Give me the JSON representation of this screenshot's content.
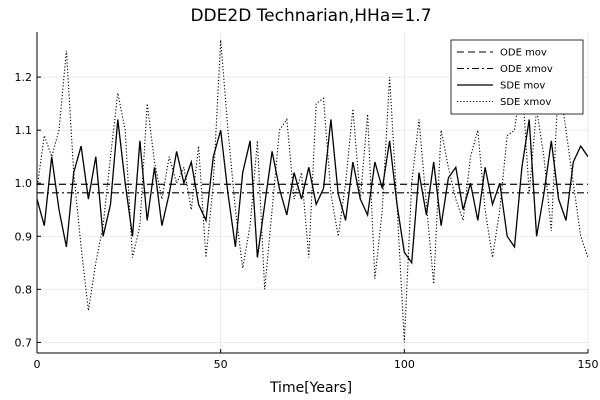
{
  "chart_data": {
    "type": "line",
    "title": "DDE2D Technarian,HHa=1.7",
    "xlabel": "Time[Years]",
    "ylabel": "",
    "xlim": [
      0,
      150
    ],
    "ylim": [
      0.68,
      1.285
    ],
    "xticks": [
      0,
      50,
      100,
      150
    ],
    "yticks": [
      0.7,
      0.8,
      0.9,
      1.0,
      1.1,
      1.2
    ],
    "xtick_labels": [
      "0",
      "50",
      "100",
      "150"
    ],
    "ytick_labels": [
      "0.7",
      "0.8",
      "0.9",
      "1.0",
      "1.1",
      "1.2"
    ],
    "grid": true,
    "legend_position": "top-right",
    "series": [
      {
        "name": "ODE mov",
        "style": "dashed",
        "x": [
          0,
          150
        ],
        "y": [
          0.998,
          0.998
        ]
      },
      {
        "name": "ODE xmov",
        "style": "dashdot",
        "x": [
          0,
          150
        ],
        "y": [
          0.982,
          0.982
        ]
      },
      {
        "name": "SDE mov",
        "style": "solid",
        "x": [
          0,
          2,
          4,
          6,
          8,
          10,
          12,
          14,
          16,
          18,
          20,
          22,
          24,
          26,
          28,
          30,
          32,
          34,
          36,
          38,
          40,
          42,
          44,
          46,
          48,
          50,
          52,
          54,
          56,
          58,
          60,
          62,
          64,
          66,
          68,
          70,
          72,
          74,
          76,
          78,
          80,
          82,
          84,
          86,
          88,
          90,
          92,
          94,
          96,
          98,
          100,
          102,
          104,
          106,
          108,
          110,
          112,
          114,
          116,
          118,
          120,
          122,
          124,
          126,
          128,
          130,
          132,
          134,
          136,
          138,
          140,
          142,
          144,
          146,
          148,
          150
        ],
        "y": [
          0.97,
          0.92,
          1.05,
          0.95,
          0.88,
          1.02,
          1.07,
          0.97,
          1.05,
          0.9,
          0.96,
          1.12,
          1.0,
          0.9,
          1.08,
          0.93,
          1.03,
          0.92,
          0.98,
          1.06,
          1.0,
          1.04,
          0.96,
          0.93,
          1.05,
          1.1,
          0.98,
          0.88,
          1.02,
          1.08,
          0.86,
          0.96,
          1.06,
          0.99,
          0.94,
          1.02,
          0.97,
          1.03,
          0.96,
          0.99,
          1.12,
          0.98,
          0.93,
          1.04,
          0.97,
          0.94,
          1.04,
          0.99,
          1.08,
          0.96,
          0.87,
          0.85,
          1.02,
          0.94,
          1.04,
          0.92,
          1.01,
          1.03,
          0.95,
          1.0,
          0.93,
          1.03,
          0.96,
          1.0,
          0.9,
          0.88,
          1.03,
          1.12,
          0.9,
          0.98,
          1.08,
          0.97,
          0.93,
          1.04,
          1.07,
          1.05
        ]
      },
      {
        "name": "SDE xmov",
        "style": "dotted",
        "x": [
          0,
          2,
          4,
          6,
          8,
          10,
          12,
          14,
          16,
          18,
          20,
          22,
          24,
          26,
          28,
          30,
          32,
          34,
          36,
          38,
          40,
          42,
          44,
          46,
          48,
          50,
          52,
          54,
          56,
          58,
          60,
          62,
          64,
          66,
          68,
          70,
          72,
          74,
          76,
          78,
          80,
          82,
          84,
          86,
          88,
          90,
          92,
          94,
          96,
          98,
          100,
          102,
          104,
          106,
          108,
          110,
          112,
          114,
          116,
          118,
          120,
          122,
          124,
          126,
          128,
          130,
          132,
          134,
          136,
          138,
          140,
          142,
          144,
          146,
          148,
          150
        ],
        "y": [
          0.99,
          1.09,
          1.05,
          1.1,
          1.25,
          1.02,
          0.88,
          0.76,
          0.85,
          0.92,
          1.05,
          1.17,
          1.1,
          0.86,
          0.92,
          1.15,
          1.04,
          0.97,
          1.05,
          1.0,
          1.03,
          0.95,
          1.07,
          0.86,
          1.0,
          1.27,
          1.1,
          0.95,
          0.84,
          0.92,
          1.08,
          0.8,
          0.95,
          1.1,
          1.12,
          0.97,
          1.02,
          0.86,
          1.15,
          1.16,
          0.98,
          0.9,
          1.0,
          1.14,
          0.97,
          1.13,
          0.82,
          0.95,
          1.2,
          0.96,
          0.7,
          1.0,
          1.12,
          0.96,
          0.81,
          1.1,
          1.03,
          0.97,
          0.93,
          1.05,
          1.1,
          0.95,
          0.86,
          0.95,
          1.09,
          1.1,
          1.2,
          0.98,
          1.14,
          1.05,
          0.91,
          1.2,
          1.1,
          1.0,
          0.9,
          0.86
        ]
      }
    ]
  }
}
